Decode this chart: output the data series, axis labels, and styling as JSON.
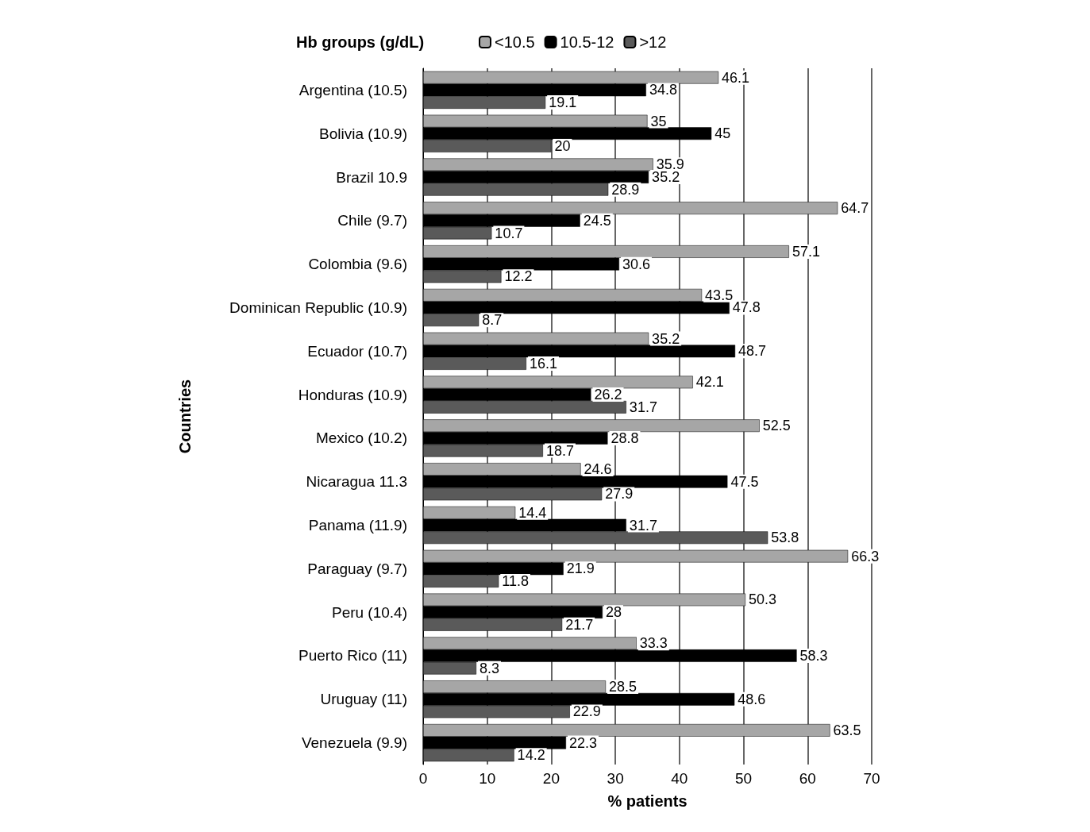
{
  "chart_data": {
    "type": "bar",
    "orientation": "horizontal",
    "xlabel": "% patients",
    "ylabel": "Countries",
    "legend_title": "Hb groups (g/dL)",
    "legend": "top",
    "grid": "x",
    "data_labels": true,
    "xlim": [
      0,
      70
    ],
    "xticks": [
      0,
      10,
      20,
      30,
      40,
      50,
      60,
      70
    ],
    "categories": [
      "Argentina (10.5)",
      "Bolivia (10.9)",
      "Brazil 10.9",
      "Chile (9.7)",
      "Colombia (9.6)",
      "Dominican Republic (10.9)",
      "Ecuador (10.7)",
      "Honduras (10.9)",
      "Mexico (10.2)",
      "Nicaragua 11.3",
      "Panama (11.9)",
      "Paraguay (9.7)",
      "Peru (10.4)",
      "Puerto Rico (11)",
      "Uruguay (11)",
      "Venezuela (9.9)"
    ],
    "series": [
      {
        "name": "<10.5",
        "color": "#a6a6a6",
        "values": [
          46.1,
          35,
          35.9,
          64.7,
          57.1,
          43.5,
          35.2,
          42.1,
          52.5,
          24.6,
          14.4,
          66.3,
          50.3,
          33.3,
          28.5,
          63.5
        ]
      },
      {
        "name": "10.5-12",
        "color": "#000000",
        "values": [
          34.8,
          45,
          35.2,
          24.5,
          30.6,
          47.8,
          48.7,
          26.2,
          28.8,
          47.5,
          31.7,
          21.9,
          28,
          58.3,
          48.6,
          22.3
        ]
      },
      {
        "name": ">12",
        "color": "#5a5a5a",
        "values": [
          19.1,
          20,
          28.9,
          10.7,
          12.2,
          8.7,
          16.1,
          31.7,
          18.7,
          27.9,
          53.8,
          11.8,
          21.7,
          8.3,
          22.9,
          14.2
        ]
      }
    ]
  }
}
